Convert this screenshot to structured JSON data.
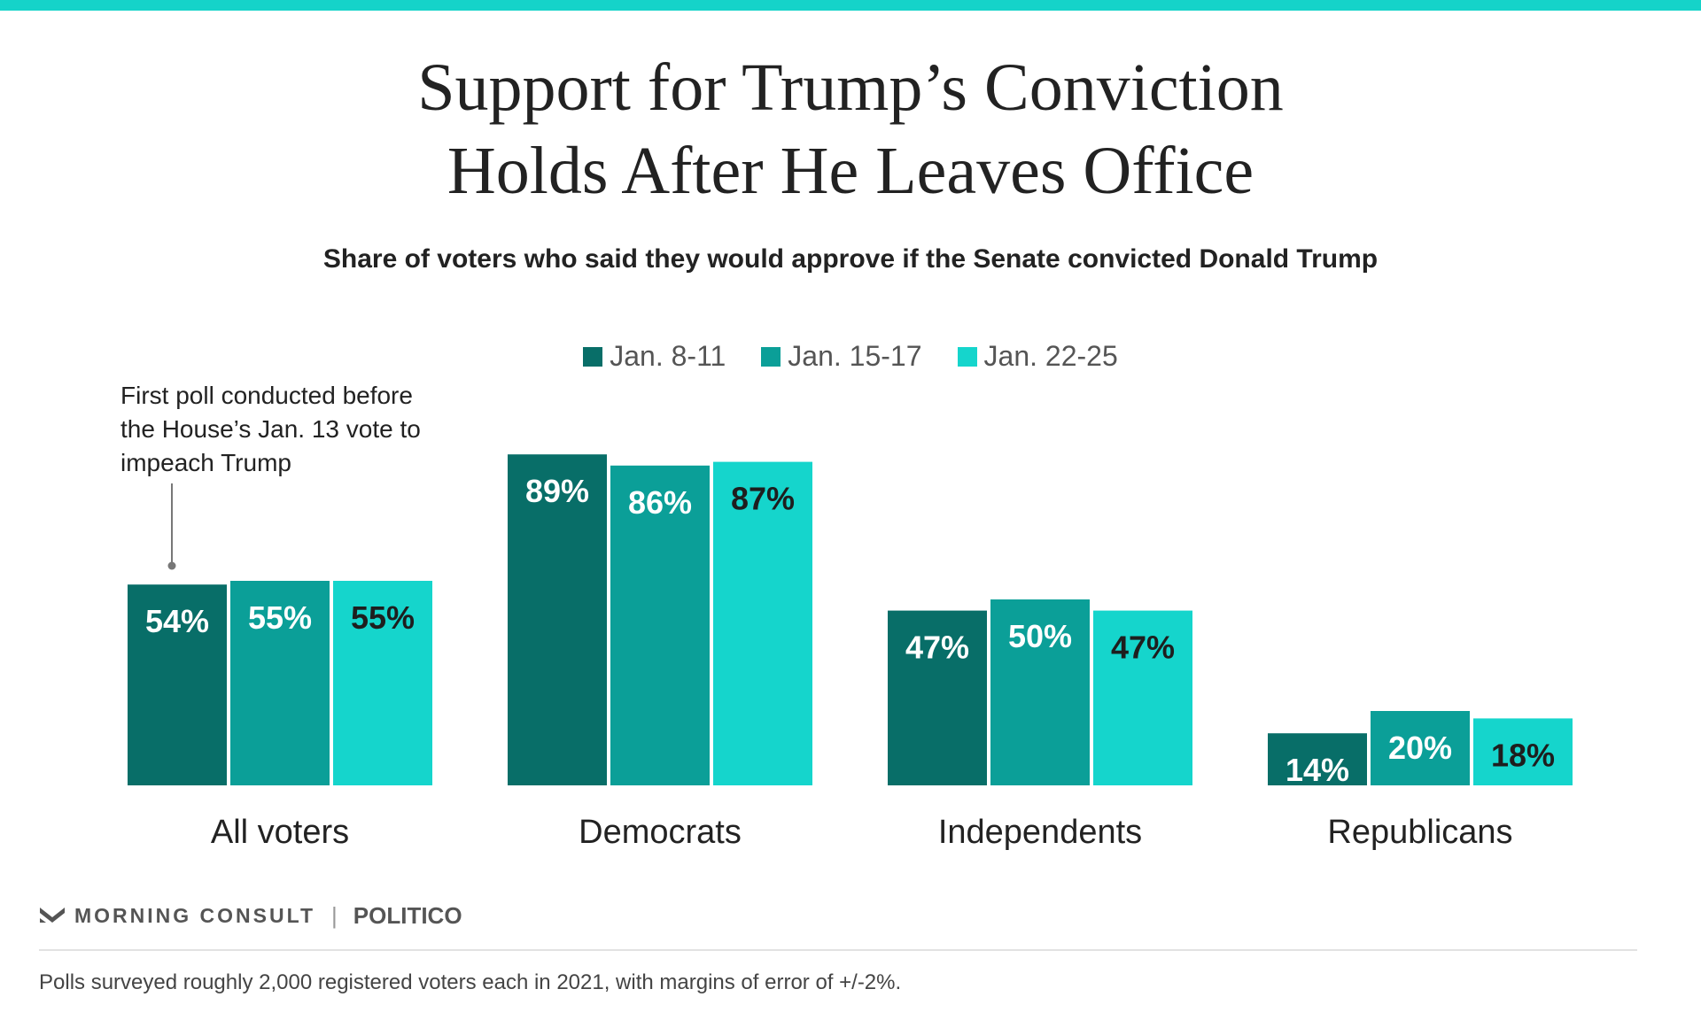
{
  "colors": {
    "top_bar": "#15d3c9",
    "series": [
      "#086e68",
      "#0b9f98",
      "#15d5cc"
    ],
    "label_light": "#ffffff",
    "label_dark": "#1e1e1e",
    "axis_text": "#222222"
  },
  "header": {
    "title_line1": "Support for Trump’s Conviction",
    "title_line2": "Holds After He Leaves Office",
    "subtitle": "Share of voters who said they would approve if the Senate convicted Donald Trump"
  },
  "annotation": {
    "line1": "First poll conducted before",
    "line2": "the House’s Jan. 13 vote to",
    "line3": "impeach Trump"
  },
  "chart_data": {
    "type": "bar",
    "title": "Support for Trump’s Conviction Holds After He Leaves Office",
    "subtitle": "Share of voters who said they would approve if the Senate convicted Donald Trump",
    "categories": [
      "All voters",
      "Democrats",
      "Independents",
      "Republicans"
    ],
    "series": [
      {
        "name": "Jan. 8-11",
        "values": [
          54,
          89,
          47,
          14
        ],
        "labels": [
          "54%",
          "89%",
          "47%",
          "14%"
        ]
      },
      {
        "name": "Jan. 15-17",
        "values": [
          55,
          86,
          50,
          20
        ],
        "labels": [
          "55%",
          "86%",
          "50%",
          "20%"
        ]
      },
      {
        "name": "Jan. 22-25",
        "values": [
          55,
          87,
          47,
          18
        ],
        "labels": [
          "55%",
          "87%",
          "47%",
          "18%"
        ]
      }
    ],
    "ylim": [
      0,
      100
    ],
    "grid": false,
    "legend_position": "top"
  },
  "footer": {
    "brand_primary": "MORNING CONSULT",
    "brand_separator": "|",
    "brand_secondary": "POLITICO",
    "note": "Polls surveyed roughly 2,000 registered voters each in 2021, with margins of error of +/-2%."
  }
}
